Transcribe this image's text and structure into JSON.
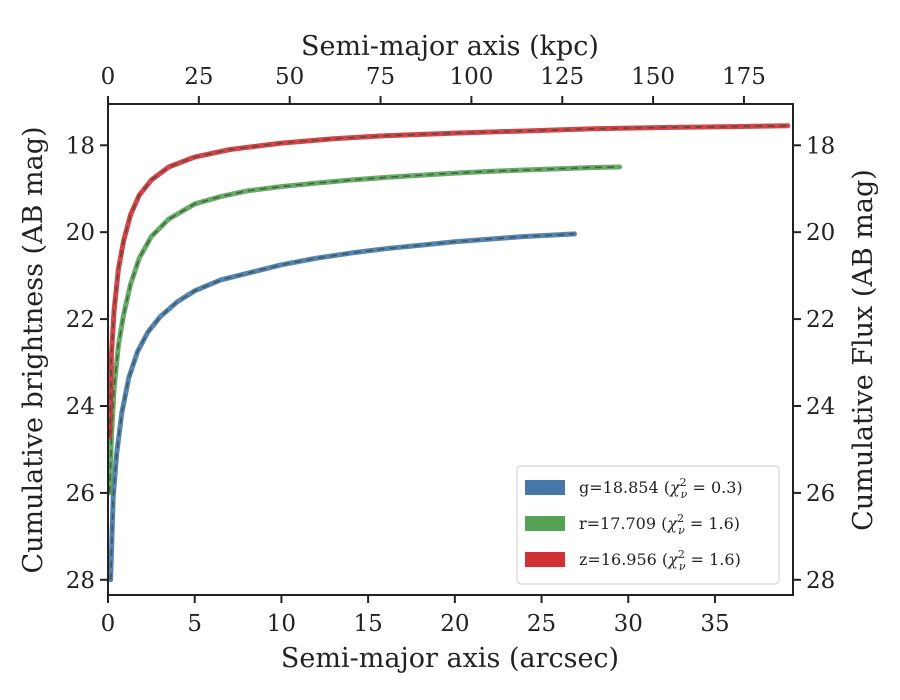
{
  "chart_data": {
    "type": "line",
    "title": "",
    "xlabel": "Semi-major axis (arcsec)",
    "ylabel": "Cumulative brightness (AB mag)",
    "x2label": "Semi-major axis (kpc)",
    "y2label": "Cumulative Flux (AB mag)",
    "xlim": [
      0,
      39.5
    ],
    "ylim": [
      28.35,
      17.05
    ],
    "x2lim": [
      0,
      188.5
    ],
    "y_inverted": true,
    "xticks": [
      0,
      5,
      10,
      15,
      20,
      25,
      30,
      35
    ],
    "yticks": [
      18,
      20,
      22,
      24,
      26,
      28
    ],
    "x2ticks": [
      0,
      25,
      50,
      75,
      100,
      125,
      150,
      175
    ],
    "grid": false,
    "legend_position": "lower-right",
    "series": [
      {
        "name": "g=18.854 (χ²ν = 0.3)",
        "legend_main": "g=18.854 (",
        "legend_chi": "χ",
        "legend_sup": "2",
        "legend_sub": "ν",
        "legend_eq": " = 0.3)",
        "color": "#4477aa",
        "x": [
          0.15,
          0.3,
          0.5,
          0.8,
          1.2,
          1.7,
          2.3,
          3.0,
          4.0,
          5.0,
          6.5,
          8.0,
          10.0,
          12.0,
          14.0,
          16.0,
          18.0,
          20.0,
          22.0,
          24.0,
          26.0,
          26.9
        ],
        "y": [
          28.0,
          26.1,
          25.1,
          24.15,
          23.35,
          22.75,
          22.3,
          21.95,
          21.6,
          21.35,
          21.1,
          20.95,
          20.75,
          20.6,
          20.48,
          20.38,
          20.3,
          20.22,
          20.16,
          20.1,
          20.06,
          20.04
        ]
      },
      {
        "name": "r=17.709 (χ²ν = 1.6)",
        "legend_main": "r=17.709 (",
        "legend_chi": "χ",
        "legend_sup": "2",
        "legend_sub": "ν",
        "legend_eq": " = 1.6)",
        "color": "#55a255",
        "x": [
          0.1,
          0.2,
          0.35,
          0.6,
          0.9,
          1.3,
          1.8,
          2.5,
          3.5,
          5.0,
          6.5,
          8.0,
          10.0,
          12.0,
          14.0,
          16.0,
          18.0,
          20.0,
          22.0,
          24.0,
          26.0,
          28.0,
          29.5
        ],
        "y": [
          26.0,
          24.7,
          23.6,
          22.6,
          21.9,
          21.2,
          20.6,
          20.1,
          19.7,
          19.35,
          19.18,
          19.05,
          18.95,
          18.87,
          18.8,
          18.74,
          18.69,
          18.64,
          18.6,
          18.57,
          18.54,
          18.51,
          18.5
        ]
      },
      {
        "name": "z=16.956 (χ²ν = 1.6)",
        "legend_main": "z=16.956 (",
        "legend_chi": "χ",
        "legend_sup": "2",
        "legend_sub": "ν",
        "legend_eq": " = 1.6)",
        "color": "#d03033",
        "x": [
          0.1,
          0.2,
          0.35,
          0.6,
          0.9,
          1.3,
          1.8,
          2.5,
          3.5,
          5.0,
          7.0,
          10.0,
          13.0,
          16.0,
          20.0,
          24.0,
          28.0,
          32.0,
          36.0,
          39.2
        ],
        "y": [
          24.7,
          22.8,
          21.8,
          20.85,
          20.2,
          19.6,
          19.15,
          18.8,
          18.5,
          18.27,
          18.1,
          17.95,
          17.85,
          17.78,
          17.72,
          17.67,
          17.62,
          17.59,
          17.57,
          17.55
        ]
      }
    ]
  }
}
